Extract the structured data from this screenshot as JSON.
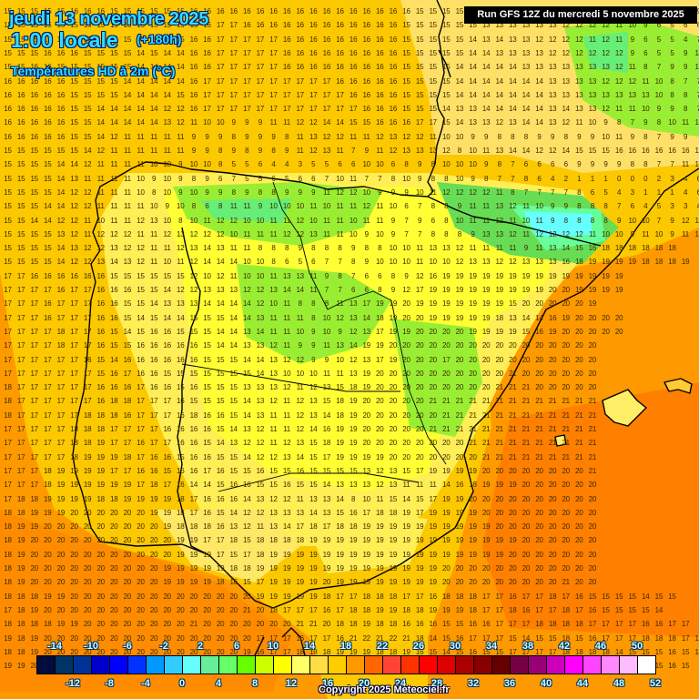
{
  "header": {
    "date": "jeudi 13 novembre 2025",
    "time": "1:00 locale",
    "lead": "(+180h)",
    "parameter": "Températures HD à 2m (°C)",
    "run": "Run GFS 12Z du mercredi 5 novembre 2025"
  },
  "footer": {
    "copyright": "Copyright 2025 Meteociel.fr"
  },
  "legend": {
    "unit": "°C",
    "start_value": -14,
    "step": 2,
    "top_ticks": [
      "-14",
      "-10",
      "-6",
      "-2",
      "2",
      "6",
      "10",
      "14",
      "18",
      "22",
      "26",
      "30",
      "34",
      "38",
      "42",
      "46",
      "50"
    ],
    "bottom_ticks": [
      "-12",
      "-8",
      "-4",
      "0",
      "4",
      "8",
      "12",
      "16",
      "20",
      "24",
      "28",
      "32",
      "36",
      "40",
      "44",
      "48",
      "52"
    ],
    "colors": [
      "#000d3d",
      "#003366",
      "#003399",
      "#0000cc",
      "#0000ff",
      "#0033ff",
      "#0099ff",
      "#33ccff",
      "#66ffff",
      "#66ee99",
      "#66ff66",
      "#66ff00",
      "#ccff00",
      "#ffff00",
      "#ffff66",
      "#ffdd44",
      "#ffcc00",
      "#ff9900",
      "#ff6600",
      "#ff4433",
      "#ff3300",
      "#ff0000",
      "#dd0000",
      "#aa0000",
      "#880000",
      "#660000",
      "#770044",
      "#990077",
      "#cc00bb",
      "#ff00ff",
      "#ff44ff",
      "#ff88ff",
      "#ffbbff",
      "#ffffff"
    ]
  },
  "map": {
    "region": "Péninsule Ibérique",
    "grid_origin": [
      8,
      13
    ],
    "grid_step": [
      14.6,
      15.3
    ],
    "rows": [
      "15 15 15 15 15 16 16 16 15 15 15 15 15 15 16 16 16 16 16 16 16 16 16 16 16 16 16 16 16 16 16 15 15 15 15 15 14 13 13 13 13 13 12 12 12 11 10 7 7 6 7 12 9 7",
      "15 15 15 15 15 15 15 15 15 15 15 15 15 15 16 16 17 17 16 16 16 16 16 16 16 16 16 16 16 16 15 15 15 15 15 15 13 13 13 13 13 13 12 12 12 12 11 10 9 6 5 6 6 8 11 8 8 7 7",
      "15 15 15 15 15 15 15 15 15 15 15 15 15 15 16 16 17 17 17 17 17 16 16 16 16 16 16 16 16 16 15 15 15 15 15 14 13 14 13 13 12 12 12 12 11 12 11 9 6 5 5 4 7 9 8 9 9 7 8",
      "15 15 15 16 16 16 15 15 15 15 14 15 14 14 16 16 17 17 17 17 17 16 16 16 16 16 16 16 16 16 15 15 15 15 15 14 14 13 13 13 13 12 12 12 12 12 12 9 6 5 5 9 10 10 9 10 7 8",
      "15 15 16 16 15 15 15 15 15 15 14 14 14 14 16 16 17 17 17 17 17 16 16 16 16 16 16 16 16 16 15 15 15 15 14 14 14 14 14 13 13 13 13 13 13 13 12 11 8 7 9 9 10 10 10 8 8",
      "16 16 16 16 16 15 15 15 15 14 14 14 14 14 16 17 17 17 17 17 17 17 17 17 17 16 16 16 16 16 15 15 15 15 14 14 14 14 14 14 14 13 13 13 13 12 12 12 11 10 8 7 7 8 7 6 8",
      "16 16 16 16 16 15 15 15 15 14 14 14 14 15 16 17 17 17 17 17 17 17 17 17 17 17 16 16 16 16 15 15 15 15 14 14 14 14 14 14 14 13 13 13 13 13 13 13 13 10 8 8 7 6 7 9 11",
      "16 16 16 16 16 15 15 14 14 14 14 14 12 12 16 17 17 17 17 17 17 17 17 17 17 17 17 16 16 16 15 15 15 14 13 13 14 14 14 14 14 13 14 13 13 12 11 11 10 9 9 8 7 9 11 9",
      "16 16 16 16 16 15 15 14 14 14 14 14 13 12 11 10 10 9 9 9 11 11 12 12 14 14 15 15 16 16 16 17 17 15 14 13 13 12 13 14 14 13 12 11 10 9 8 7 9 8 10 11 10 11 9",
      "16 16 16 16 16 15 15 14 12 11 11 11 11 11 9 9 9 8 9 9 9 8 11 13 12 12 11 11 12 13 12 12 11 10 10 9 9 8 8 8 9 9 8 9 9 10 11 9 8 7 9 9",
      "15 15 15 15 15 15 14 12 11 11 11 11 11 11 9 9 8 9 8 9 8 9 11 12 13 11 7 9 11 12 13 13 13 12 8 10 11 13 14 14 12 12 14 15 15 15 16 16 16 16 16 16 16",
      "15 15 15 15 14 14 12 11 11 11 11 10 10 9 10 10 8 5 5 6 4 4 3 5 5 6 6 10 10 6 8 9 8 10 10 10 9 8 7 6 6 6 6 9 9 9 9 8 8 7 7 11 12 14 17 17 17 17",
      "15 15 15 15 14 13 11 11 11 11 10 9 10 9 8 9 6 7 5 5 6 5 6 6 7 10 11 7 7 8 10 9 8 8 10 9 8 7 7 8 6 4 2 1 1 1 0 0 0 2 3 4 6 8 13 17 17 17 17",
      "15 15 15 15 14 12 12 11 11 11 10 8 10 9 10 9 9 8 9 8 8 9 9 9 11 12 12 10 9 9 9 10 11 12 12 12 12 11 8 7 7 7 7 8 6 5 4 3 1 1 1 4 6 9 12 17 17 17 17",
      "15 15 15 14 14 12 12 11 11 11 11 10 9 10 8 6 8 11 11 9 10 10 10 11 10 11 11 12 11 10 6 7 8 8 9 11 11 13 12 11 10 9 9 8 8 8 7 6 4 5 3 3 4 7 8 10 12 17 17 17",
      "15 15 14 14 12 12 11 10 11 11 12 13 10 8 10 11 12 12 10 10 11 11 12 10 11 11 10 11 11 9 7 9 6 8 10 11 11 12 11 10 11 9 8 8 8 8 9 10 10 7 9 12 13 17 17 17",
      "15 15 15 15 13 12 11 12 12 12 11 11 12 13 12 12 12 10 11 11 11 12 12 13 11 11 10 9 10 9 7 7 8 8 8 9 13 13 12 11 12 12 12 12 11 10 10 9 11 10 9 11 12 17 18 18 18",
      "15 15 15 15 14 13 12 12 13 12 12 11 11 12 13 14 13 11 11 8 8 8 9 8 8 8 9 8 8 10 10 11 13 13 12 11 11 11 11 9 11 13 14 15 16 18 18 18 18 18 18",
      "15 15 15 15 14 12 12 13 14 13 12 11 10 11 12 14 14 14 10 10 8 6 5 6 7 7 8 9 10 10 10 11 10 10 12 13 13 12 12 13 13 13 16 18 19 19 19 19 18 18 18 19",
      "17 17 16 16 16 16 16 16 15 15 15 15 15 15 12 10 12 11 10 10 11 13 13 11 9 8 7 6 6 8 9 12 16 19 19 19 19 19 19 19 19 19 19 19 19 19 19",
      "17 17 17 17 16 17 17 16 16 16 15 15 14 12 12 13 13 13 12 12 13 14 14 11 7 7 6 6 8 9 12 17 19 19 19 19 19 19 19 19 19 20 20 19 19 19 19",
      "17 17 17 16 17 17 17 16 16 15 15 14 13 13 13 14 14 14 14 12 10 11 8 8 8 11 13 17 19 19 20 19 19 19 19 19 19 19 15 20 20 20 20 20 19",
      "17 17 17 16 17 17 17 16 16 15 14 15 14 14 15 15 15 14 14 13 11 11 11 8 10 12 13 14 18 19 20 20 19 19 19 19 19 18 13 14 14 16 19 20 20 20 20",
      "17 17 17 17 18 17 17 16 15 14 15 16 16 15 15 15 14 14 13 14 11 11 10 9 10 9 12 13 17 19 19 20 20 20 20 19 19 19 19 15 16 19 20 20 20 20 20",
      "17 17 17 17 18 17 17 16 15 15 16 16 16 16 16 15 14 14 13 13 12 11 9 9 11 13 14 19 19 20 20 20 20 20 20 20 20 20 20 20 20 20 20 20 20",
      "17 17 17 17 17 17 16 15 14 16 16 16 16 16 16 15 15 15 14 14 13 12 12 9 9 10 12 13 17 19 20 20 20 17 20 20 20 20 20 20 20 20 20 20 20",
      "17 17 17 17 17 17 17 15 16 17 16 16 15 15 15 15 15 15 15 14 13 10 10 10 11 11 13 19 20 20 20 20 20 20 20 20 20 20 21 20 20 20 20 20 20",
      "18 17 17 17 17 17 17 16 16 16 17 16 16 15 16 15 15 15 13 13 13 12 11 12 13 15 18 19 20 20 20 20 20 20 20 20 20 21 21 21 20 20 20 20 20",
      "18 17 17 17 17 17 17 16 18 18 17 17 17 16 15 15 15 15 14 13 12 11 12 13 15 18 19 20 20 20 20 20 21 21 21 21 21 21 21 21 21 21 21 21 21",
      "18 17 17 17 17 17 18 18 18 16 17 17 17 16 18 16 16 15 14 13 11 11 12 13 14 18 19 20 20 20 20 20 20 21 21 21 21 21 21 21 21 21 21 21 21",
      "17 17 17 17 17 18 18 18 17 17 17 17 16 16 16 16 15 14 13 12 11 11 12 14 16 19 19 20 20 20 20 20 21 21 21 21 21 21 21 21 21 21 21 21 21",
      "17 17 17 17 17 18 18 19 17 17 16 17 17 16 16 15 14 13 12 12 11 12 13 15 18 19 19 20 20 20 20 20 20 20 20 21 21 21 21 21 21 21 21 21 21",
      "17 17 17 17 17 18 19 19 19 18 17 16 16 15 16 16 15 15 14 12 12 13 14 15 17 19 19 19 19 20 20 20 20 20 20 20 21 21 21 21 21 21 21 21 21",
      "17 17 17 18 19 19 19 19 17 17 16 16 15 16 16 17 16 15 15 16 15 15 16 15 15 15 15 13 12 13 15 17 19 19 19 19 20 20 20 20 20 20 20 20 21",
      "17 17 17 18 19 19 19 19 19 19 17 18 17 16 14 14 15 16 16 15 15 16 15 15 14 13 13 13 12 13 11 11 11 14 16 18 19 19 19 20 20 20 20 20 20",
      "17 18 18 19 19 19 19 18 18 19 19 19 19 18 17 16 16 16 14 13 12 12 11 13 13 14 8 10 11 15 14 15 17 19 19 20 20 20 20 20 20 20 20 20 20",
      "18 18 19 19 19 20 20 20 20 20 20 19 19 18 17 16 15 14 12 12 13 13 13 14 13 15 16 17 18 18 19 17 19 19 19 19 20 20 20 20 20 20 20 20 20",
      "18 19 19 20 20 20 20 20 20 20 20 20 19 18 18 18 16 13 12 11 13 14 17 18 17 18 18 19 19 19 19 19 19 19 19 19 19 20 20 20 20 20 20 20 20",
      "18 19 20 20 20 20 20 20 20 20 20 20 20 19 19 17 17 18 15 18 18 18 18 19 19 19 19 19 19 19 19 19 19 19 19 19 19 19 19 20 20 20 20 20 20",
      "18 19 20 20 20 20 20 20 20 20 20 20 20 19 19 19 17 15 17 18 19 19 19 19 19 19 19 19 19 19 19 19 19 19 19 19 19 19 20 20 20 20 20 20 20",
      "18 19 20 20 20 20 20 20 20 20 20 20 19 19 19 19 19 18 18 19 19 19 19 19 19 19 19 19 19 19 19 19 19 20 20 20 20 20 20 20 20 20 20 20 20",
      "18 19 20 20 20 20 20 20 20 20 20 20 19 19 19 19 18 16 15 17 19 19 19 19 20 19 19 19 19 19 19 19 19 20 20 20 20 20 20 20 20 20 21 20 20",
      "18 18 18 19 19 20 20 20 20 20 20 20 20 20 20 20 20 20 20 19 19 19 19 19 18 17 17 18 18 18 17 17 16 18 18 18 17 17 16 17 17 18 17 16 15 15 15 15 14 15 15",
      "17 18 19 20 20 20 20 20 20 20 20 20 20 20 20 20 20 20 21 20 18 17 17 17 16 17 18 18 19 19 18 18 19 19 19 18 17 17 18 16 17 17 18 17 16 15 15 15 15 14",
      "18 18 18 18 19 19 20 20 20 20 20 20 20 20 21 20 20 20 20 20 20 20 21 21 20 18 18 19 18 18 16 16 16 15 15 16 16 17 17 17 18 18 18 18 17 17 17 17 16 16 17 17",
      "19 18 19 20 20 20 20 20 20 20 20 20 20 20 20 20 20 20 20 17 17 17 16 17 17 16 21 22 21 22 21 18 14 15 16 17 17 17 15 14 15 15 18 15 16 17 17 17 18 18 18 17 15 15",
      "18 18 19 20 20 20 20 20 20 20 20 20 20 20 20 20 20 20 19 16 17 17 18 18 18 19 19 19 18 18 19 16 15 14 15 16 15 15 17 17 17 17 18 18 18 18 14 15 15 15 16 15 15",
      "19 19 20 20 20 20 20 20 20 20 20 20 20 20 20 20 20 20 19 19 17 17 17 17 18 18 18 18 17 16 15 15 16 15 15 16 16 17 17 17 18 16 16 17 18 16 15 14 15 15 16 15"
    ],
    "labels_visible": true
  }
}
